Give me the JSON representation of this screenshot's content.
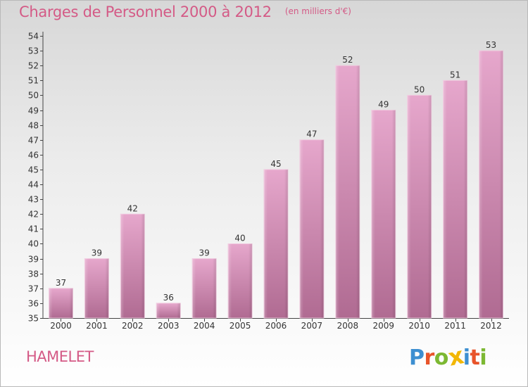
{
  "header": {
    "title": "Charges de Personnel 2000 à 2012",
    "unit": "(en milliers d'€)"
  },
  "footer": {
    "commune": "HAMELET",
    "logo_text": "Proxiti",
    "logo_colors": [
      "#3d8fd1",
      "#e8542a",
      "#7cb832",
      "#f2b705",
      "#3d8fd1",
      "#e8542a",
      "#7cb832"
    ]
  },
  "chart_data": {
    "type": "bar",
    "title": "Charges de Personnel 2000 à 2012",
    "subtitle": "(en milliers d'€)",
    "xlabel": "",
    "ylabel": "",
    "categories": [
      "2000",
      "2001",
      "2002",
      "2003",
      "2004",
      "2005",
      "2006",
      "2007",
      "2008",
      "2009",
      "2010",
      "2011",
      "2012"
    ],
    "values": [
      37,
      39,
      42,
      36,
      39,
      40,
      45,
      47,
      52,
      49,
      50,
      51,
      53
    ],
    "ylim": [
      35,
      54
    ],
    "yticks": [
      35,
      36,
      37,
      38,
      39,
      40,
      41,
      42,
      43,
      44,
      45,
      46,
      47,
      48,
      49,
      50,
      51,
      52,
      53,
      54
    ],
    "grid": false,
    "bar_color": "#d98fb8",
    "bar_color_dark": "#b0668f",
    "axis_color": "#444444",
    "data_labels": true
  }
}
